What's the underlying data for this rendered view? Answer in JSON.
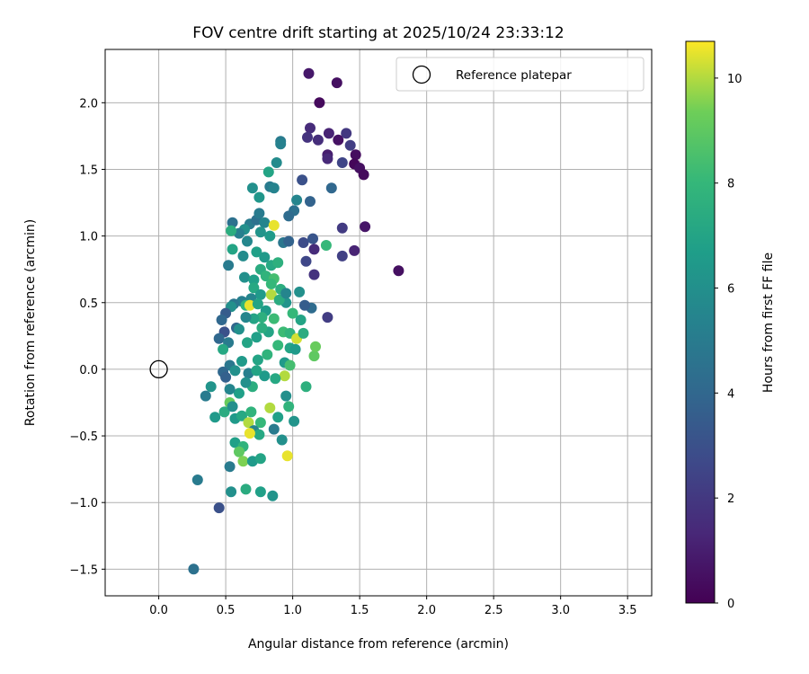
{
  "chart_data": {
    "type": "scatter",
    "title": "FOV centre drift starting at 2025/10/24 23:33:12",
    "xlabel": "Angular distance from reference (arcmin)",
    "ylabel": "Rotation from reference (arcmin)",
    "xlim": [
      -0.4,
      3.68
    ],
    "ylim": [
      -1.7,
      2.4
    ],
    "xticks": [
      0.0,
      0.5,
      1.0,
      1.5,
      2.0,
      2.5,
      3.0,
      3.5
    ],
    "xtick_labels": [
      "0.0",
      "0.5",
      "1.0",
      "1.5",
      "2.0",
      "2.5",
      "3.0",
      "3.5"
    ],
    "yticks": [
      -1.5,
      -1.0,
      -0.5,
      0.0,
      0.5,
      1.0,
      1.5,
      2.0
    ],
    "ytick_labels": [
      "−1.5",
      "−1.0",
      "−0.5",
      "0.0",
      "0.5",
      "1.0",
      "1.5",
      "2.0"
    ],
    "grid": true,
    "colorbar": {
      "label": "Hours from first FF file",
      "colormap": "viridis",
      "range": [
        0,
        10.7
      ],
      "ticks": [
        0,
        2,
        4,
        6,
        8,
        10
      ],
      "tick_labels": [
        "0",
        "2",
        "4",
        "6",
        "8",
        "10"
      ]
    },
    "reference": {
      "label": "Reference platepar",
      "x": 0.0,
      "y": 0.0
    },
    "legend_position": "top-right",
    "series": [
      {
        "name": "FOV centre",
        "points": [
          [
            1.12,
            2.22,
            0.8
          ],
          [
            1.33,
            2.15,
            0.5
          ],
          [
            1.2,
            2.0,
            0.3
          ],
          [
            1.13,
            1.81,
            1.5
          ],
          [
            1.11,
            1.74,
            1.8
          ],
          [
            1.19,
            1.72,
            1.6
          ],
          [
            1.27,
            1.77,
            1.2
          ],
          [
            1.34,
            1.72,
            0.6
          ],
          [
            1.4,
            1.77,
            2.0
          ],
          [
            1.43,
            1.68,
            2.2
          ],
          [
            1.47,
            1.61,
            0.4
          ],
          [
            1.46,
            1.54,
            0.2
          ],
          [
            1.5,
            1.51,
            0.5
          ],
          [
            1.53,
            1.46,
            0.3
          ],
          [
            1.37,
            1.55,
            2.5
          ],
          [
            1.26,
            1.61,
            1.0
          ],
          [
            1.26,
            1.58,
            1.4
          ],
          [
            1.07,
            1.42,
            3.0
          ],
          [
            1.29,
            1.36,
            4.0
          ],
          [
            1.13,
            1.26,
            3.8
          ],
          [
            1.03,
            1.27,
            5.5
          ],
          [
            1.01,
            1.19,
            4.5
          ],
          [
            0.97,
            1.15,
            4.2
          ],
          [
            0.91,
            1.71,
            5.0
          ],
          [
            0.91,
            1.69,
            5.3
          ],
          [
            0.88,
            1.55,
            5.8
          ],
          [
            0.82,
            1.48,
            7.0
          ],
          [
            0.83,
            1.37,
            5.0
          ],
          [
            0.86,
            1.36,
            5.4
          ],
          [
            0.7,
            1.36,
            6.0
          ],
          [
            0.75,
            1.29,
            6.3
          ],
          [
            0.55,
            1.1,
            4.5
          ],
          [
            0.68,
            1.09,
            5.0
          ],
          [
            0.73,
            1.12,
            4.5
          ],
          [
            0.79,
            1.1,
            5.5
          ],
          [
            0.75,
            1.17,
            5.0
          ],
          [
            0.64,
            1.05,
            6.0
          ],
          [
            0.6,
            1.02,
            5.2
          ],
          [
            0.54,
            1.04,
            7.5
          ],
          [
            0.66,
            0.96,
            5.6
          ],
          [
            0.76,
            1.03,
            6.2
          ],
          [
            0.83,
            1.0,
            6.5
          ],
          [
            0.86,
            1.08,
            10.5
          ],
          [
            0.93,
            0.95,
            4.8
          ],
          [
            0.97,
            0.96,
            3.8
          ],
          [
            1.08,
            0.95,
            2.8
          ],
          [
            1.15,
            0.98,
            3.2
          ],
          [
            1.16,
            0.9,
            1.5
          ],
          [
            1.1,
            0.81,
            2.6
          ],
          [
            1.16,
            0.71,
            1.8
          ],
          [
            1.37,
            1.06,
            2.1
          ],
          [
            1.54,
            1.07,
            0.7
          ],
          [
            1.37,
            0.85,
            2.3
          ],
          [
            1.46,
            0.89,
            1.2
          ],
          [
            1.79,
            0.74,
            0.5
          ],
          [
            1.25,
            0.93,
            8.0
          ],
          [
            1.26,
            0.39,
            2.2
          ],
          [
            1.14,
            0.46,
            4.2
          ],
          [
            1.09,
            0.48,
            3.5
          ],
          [
            0.52,
            0.78,
            5.0
          ],
          [
            0.55,
            0.9,
            7.0
          ],
          [
            0.63,
            0.85,
            5.8
          ],
          [
            0.73,
            0.88,
            6.8
          ],
          [
            0.79,
            0.84,
            6.5
          ],
          [
            0.84,
            0.78,
            7.2
          ],
          [
            0.89,
            0.8,
            7.6
          ],
          [
            0.76,
            0.75,
            7.4
          ],
          [
            0.64,
            0.69,
            6.0
          ],
          [
            0.71,
            0.67,
            6.8
          ],
          [
            0.8,
            0.7,
            7.8
          ],
          [
            0.86,
            0.68,
            8.4
          ],
          [
            0.84,
            0.64,
            8.0
          ],
          [
            0.91,
            0.6,
            7.5
          ],
          [
            0.71,
            0.61,
            7.2
          ],
          [
            0.76,
            0.56,
            6.5
          ],
          [
            0.69,
            0.53,
            5.5
          ],
          [
            0.62,
            0.51,
            5.2
          ],
          [
            0.56,
            0.49,
            4.8
          ],
          [
            0.54,
            0.47,
            6.0
          ],
          [
            0.65,
            0.48,
            7.8
          ],
          [
            0.68,
            0.48,
            10.5
          ],
          [
            0.74,
            0.49,
            7.0
          ],
          [
            0.8,
            0.44,
            6.6
          ],
          [
            0.84,
            0.56,
            10.0
          ],
          [
            0.77,
            0.39,
            7.6
          ],
          [
            0.71,
            0.38,
            7.0
          ],
          [
            0.65,
            0.39,
            5.5
          ],
          [
            0.58,
            0.31,
            4.0
          ],
          [
            0.5,
            0.42,
            3.5
          ],
          [
            0.47,
            0.37,
            4.0
          ],
          [
            0.49,
            0.28,
            3.0
          ],
          [
            0.45,
            0.23,
            4.0
          ],
          [
            0.52,
            0.2,
            5.0
          ],
          [
            0.48,
            0.15,
            7.2
          ],
          [
            0.53,
            0.03,
            4.8
          ],
          [
            0.48,
            -0.02,
            4.0
          ],
          [
            0.5,
            -0.06,
            3.7
          ],
          [
            0.57,
            -0.01,
            6.0
          ],
          [
            0.62,
            0.06,
            6.5
          ],
          [
            0.67,
            -0.03,
            5.2
          ],
          [
            0.74,
            0.07,
            7.0
          ],
          [
            0.81,
            0.11,
            7.8
          ],
          [
            0.89,
            0.18,
            8.0
          ],
          [
            0.93,
            0.28,
            8.2
          ],
          [
            0.98,
            0.27,
            7.8
          ],
          [
            0.98,
            0.16,
            7.0
          ],
          [
            0.94,
            0.05,
            6.5
          ],
          [
            0.98,
            0.03,
            8.4
          ],
          [
            0.94,
            -0.05,
            10.0
          ],
          [
            0.87,
            -0.07,
            7.2
          ],
          [
            0.79,
            -0.05,
            6.5
          ],
          [
            0.73,
            -0.01,
            7.0
          ],
          [
            0.7,
            -0.13,
            7.5
          ],
          [
            0.65,
            -0.1,
            6.0
          ],
          [
            0.6,
            -0.18,
            6.8
          ],
          [
            0.53,
            -0.15,
            5.5
          ],
          [
            0.39,
            -0.13,
            6.2
          ],
          [
            0.35,
            -0.2,
            5.0
          ],
          [
            0.42,
            -0.36,
            6.5
          ],
          [
            0.49,
            -0.32,
            7.4
          ],
          [
            0.53,
            -0.25,
            9.2
          ],
          [
            0.55,
            -0.28,
            6.0
          ],
          [
            0.57,
            -0.37,
            6.5
          ],
          [
            0.62,
            -0.35,
            7.2
          ],
          [
            0.69,
            -0.32,
            7.8
          ],
          [
            0.76,
            -0.4,
            8.0
          ],
          [
            0.83,
            -0.29,
            10.0
          ],
          [
            0.89,
            -0.36,
            6.8
          ],
          [
            0.95,
            -0.2,
            6.0
          ],
          [
            0.97,
            -0.28,
            7.8
          ],
          [
            1.01,
            -0.39,
            6.2
          ],
          [
            0.92,
            -0.53,
            6.0
          ],
          [
            1.1,
            -0.13,
            7.6
          ],
          [
            1.03,
            0.23,
            10.3
          ],
          [
            1.16,
            0.1,
            9.0
          ],
          [
            1.17,
            0.17,
            9.2
          ],
          [
            1.08,
            0.27,
            7.4
          ],
          [
            0.67,
            -0.4,
            10.0
          ],
          [
            0.71,
            -0.46,
            5.5
          ],
          [
            0.75,
            -0.49,
            7.2
          ],
          [
            0.68,
            -0.48,
            10.5
          ],
          [
            0.57,
            -0.55,
            6.8
          ],
          [
            0.63,
            -0.58,
            7.8
          ],
          [
            0.6,
            -0.62,
            9.0
          ],
          [
            0.63,
            -0.69,
            9.5
          ],
          [
            0.7,
            -0.69,
            6.5
          ],
          [
            0.76,
            -0.67,
            7.0
          ],
          [
            0.86,
            -0.45,
            5.0
          ],
          [
            0.96,
            -0.65,
            10.5
          ],
          [
            0.53,
            -0.73,
            5.0
          ],
          [
            0.54,
            -0.92,
            6.0
          ],
          [
            0.65,
            -0.9,
            7.4
          ],
          [
            0.76,
            -0.92,
            6.8
          ],
          [
            0.85,
            -0.95,
            6.2
          ],
          [
            0.29,
            -0.83,
            5.0
          ],
          [
            0.45,
            -1.04,
            3.0
          ],
          [
            0.26,
            -1.5,
            4.5
          ],
          [
            0.82,
            0.28,
            7.0
          ],
          [
            0.86,
            0.38,
            8.2
          ],
          [
            0.66,
            0.2,
            7.0
          ],
          [
            0.6,
            0.3,
            6.0
          ],
          [
            0.73,
            0.24,
            6.8
          ],
          [
            0.77,
            0.31,
            7.5
          ],
          [
            1.02,
            0.15,
            6.5
          ],
          [
            1.06,
            0.37,
            7.0
          ],
          [
            1.0,
            0.42,
            8.0
          ],
          [
            0.95,
            0.5,
            6.2
          ],
          [
            0.9,
            0.52,
            7.4
          ],
          [
            0.95,
            0.57,
            5.5
          ],
          [
            1.05,
            0.58,
            6.0
          ]
        ]
      }
    ]
  }
}
